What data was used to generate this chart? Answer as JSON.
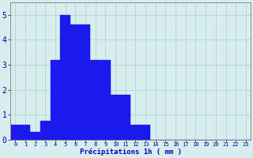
{
  "categories": [
    0,
    1,
    2,
    3,
    4,
    5,
    6,
    7,
    8,
    9,
    10,
    11,
    12,
    13,
    14,
    15,
    16,
    17,
    18,
    19,
    20,
    21,
    22,
    23
  ],
  "values": [
    0.6,
    0.6,
    0.3,
    0.75,
    3.2,
    5.0,
    4.6,
    4.6,
    3.2,
    3.2,
    1.8,
    1.8,
    0.6,
    0.6,
    0,
    0,
    0,
    0,
    0,
    0,
    0,
    0,
    0,
    0
  ],
  "bar_color": "#1a1aee",
  "bar_edge_color": "#1a1aee",
  "background_color": "#d8eeee",
  "grid_color": "#b8d8d8",
  "xlabel": "Précipitations 1h ( mm )",
  "xlabel_color": "#0000bb",
  "tick_color": "#0000bb",
  "ylim": [
    0,
    5.5
  ],
  "yticks": [
    0,
    1,
    2,
    3,
    4,
    5
  ],
  "xlim": [
    -0.5,
    23.5
  ]
}
